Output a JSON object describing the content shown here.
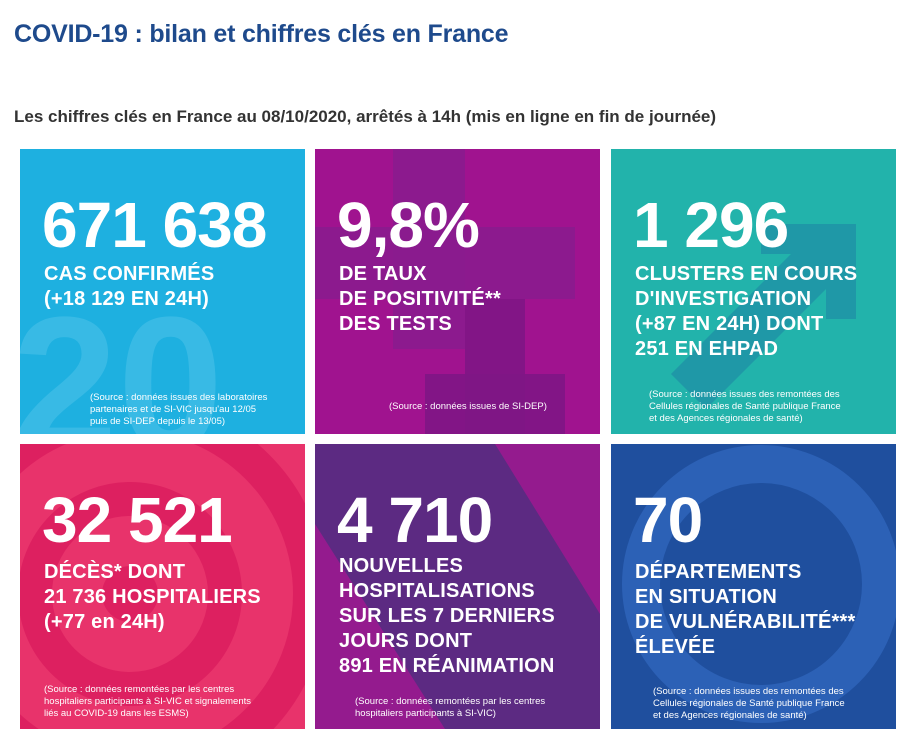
{
  "header": {
    "title": "COVID-19 : bilan et chiffres clés en France",
    "subtitle": "Les chiffres clés en France au 08/10/2020, arrêtés à 14h (mis en ligne en fin de journée)"
  },
  "tiles": [
    {
      "number": "671 638",
      "desc": "CAS CONFIRMÉS\n(+18 129 EN 24H)",
      "source": "(Source : données issues des laboratoires\npartenaires et de SI-VIC jusqu'au 12/05\npuis de SI-DEP depuis le 13/05)",
      "bg": "#1eb0e0"
    },
    {
      "number": "9,8%",
      "desc": "DE TAUX\nDE POSITIVITÉ**\nDES TESTS",
      "source": "(Source : données issues de SI-DEP)",
      "bg": "#a0138f"
    },
    {
      "number": "1 296",
      "desc": "CLUSTERS EN COURS\nD'INVESTIGATION\n(+87 EN 24H) DONT\n251 EN EHPAD",
      "source": "(Source : données issues des remontées des\nCellules régionales de Santé publique France\net des Agences régionales de santé)",
      "bg": "#22b3ab"
    },
    {
      "number": "32 521",
      "desc": "DÉCÈS* DONT\n21 736 HOSPITALIERS\n(+77 en 24H)",
      "source": "(Source : données remontées par les centres\nhospitaliers participants à SI-VIC et signalements\nliés au COVID-19 dans les ESMS)",
      "bg": "#e8336b"
    },
    {
      "number": "4 710",
      "desc": "NOUVELLES\nHOSPITALISATIONS\nSUR LES 7 DERNIERS\nJOURS DONT\n891 EN RÉANIMATION",
      "source": "(Source : données remontées par les centres\nhospitaliers participants à SI-VIC)",
      "bg": "#5c2a82"
    },
    {
      "number": "70",
      "desc": "DÉPARTEMENTS\nEN SITUATION\nDE VULNÉRABILITÉ***\nÉLEVÉE",
      "source": "(Source : données issues des remontées des\nCellules régionales de Santé publique France\net des Agences régionales de santé)",
      "bg": "#1f4f9e"
    }
  ]
}
